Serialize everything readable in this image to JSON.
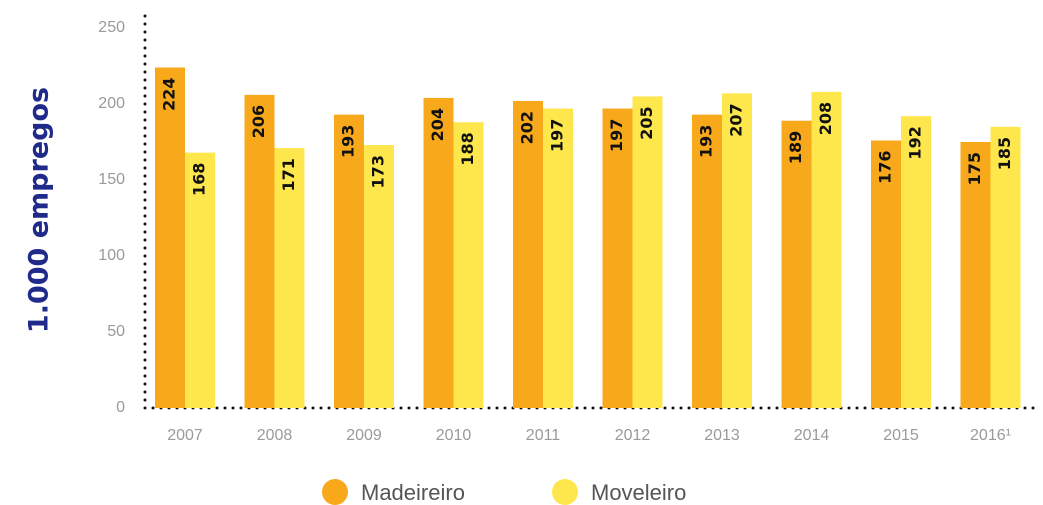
{
  "chart_data": {
    "type": "bar",
    "y_label": "1.000 empregos",
    "categories": [
      "2007",
      "2008",
      "2009",
      "2010",
      "2011",
      "2012",
      "2013",
      "2014",
      "2015",
      "2016¹"
    ],
    "series": [
      {
        "name": "Madeireiro",
        "color": "#f8a81b",
        "values": [
          224,
          206,
          193,
          204,
          202,
          197,
          193,
          189,
          176,
          175
        ]
      },
      {
        "name": "Moveleiro",
        "color": "#fde74c",
        "values": [
          168,
          171,
          173,
          188,
          197,
          205,
          207,
          208,
          192,
          185
        ]
      }
    ],
    "ylim": [
      0,
      250
    ],
    "yticks": [
      0,
      50,
      100,
      150,
      200,
      250
    ]
  }
}
